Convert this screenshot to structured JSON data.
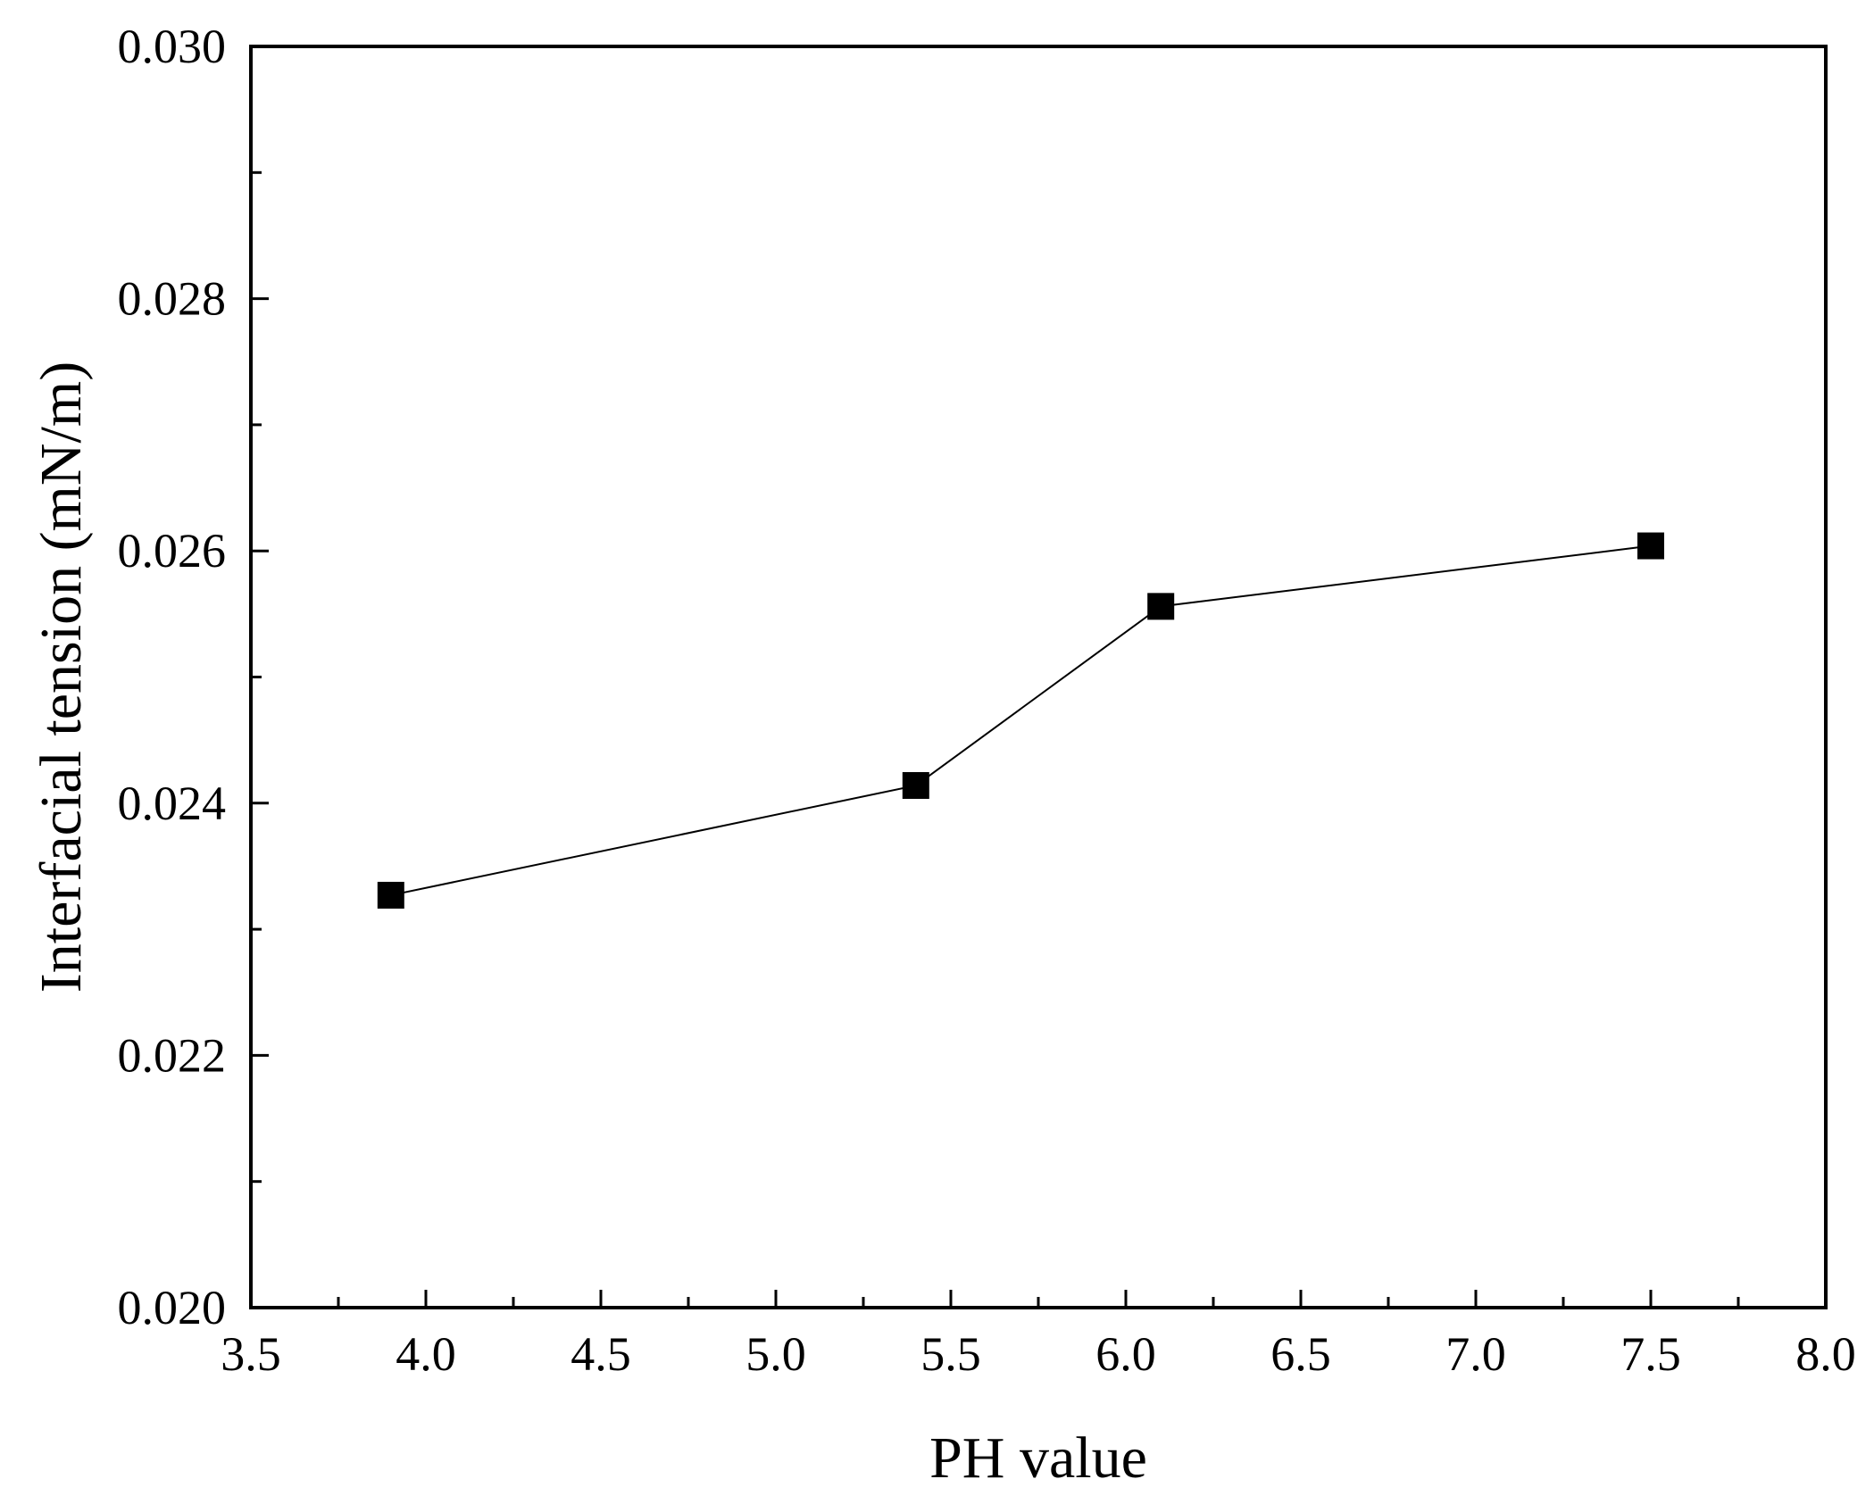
{
  "chart_data": {
    "type": "line",
    "title": "",
    "xlabel": "PH value",
    "ylabel": "Interfacial tension  (mN/m)",
    "xlim": [
      3.5,
      8.0
    ],
    "ylim": [
      0.02,
      0.03
    ],
    "x_ticks": [
      "3.5",
      "4.0",
      "4.5",
      "5.0",
      "5.5",
      "6.0",
      "6.5",
      "7.0",
      "7.5",
      "8.0"
    ],
    "y_ticks": [
      "0.020",
      "0.022",
      "0.024",
      "0.026",
      "0.028",
      "0.030"
    ],
    "x_minor_step": 0.25,
    "y_minor_step": 0.001,
    "grid": false,
    "series": [
      {
        "name": "Interfacial tension",
        "marker": "square",
        "color": "#000000",
        "x": [
          3.9,
          5.4,
          6.1,
          7.5
        ],
        "y": [
          0.02327,
          0.02414,
          0.02556,
          0.02604
        ]
      }
    ]
  }
}
